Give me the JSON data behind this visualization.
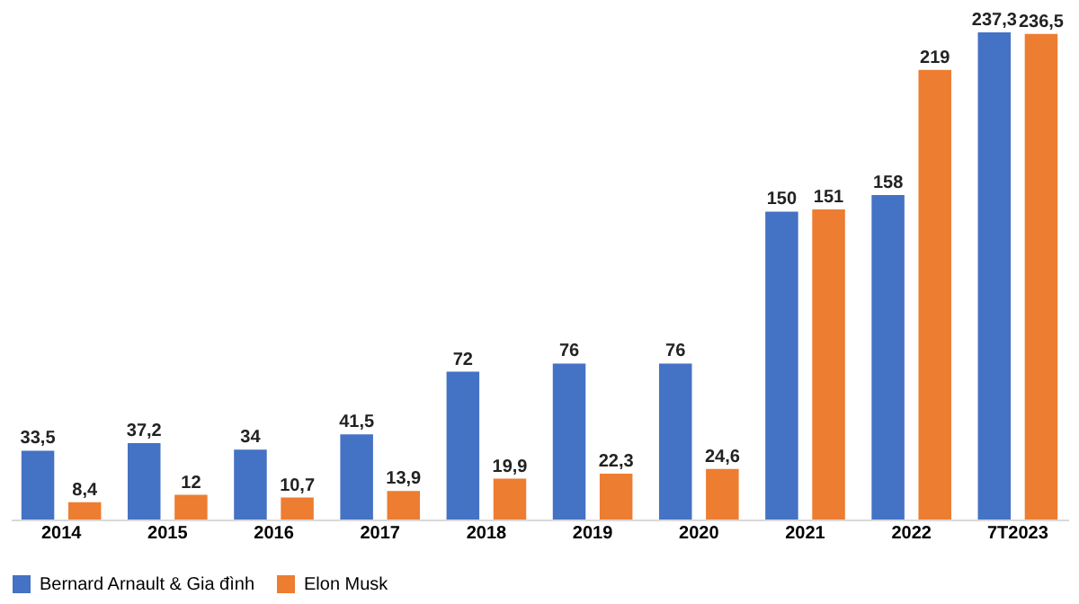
{
  "chart_data": {
    "type": "bar",
    "categories": [
      "2014",
      "2015",
      "2016",
      "2017",
      "2018",
      "2019",
      "2020",
      "2021",
      "2022",
      "7T2023"
    ],
    "series": [
      {
        "name": "Bernard Arnault & Gia đình",
        "color": "#4472c4",
        "values": [
          33.5,
          37.2,
          34,
          41.5,
          72,
          76,
          76,
          150,
          158,
          237.3
        ],
        "value_labels": [
          "33,5",
          "37,2",
          "34",
          "41,5",
          "72",
          "76",
          "76",
          "150",
          "158",
          "237,3"
        ]
      },
      {
        "name": "Elon Musk",
        "color": "#ed7d31",
        "values": [
          8.4,
          12,
          10.7,
          13.9,
          19.9,
          22.3,
          24.6,
          151,
          219,
          236.5
        ],
        "value_labels": [
          "8,4",
          "12",
          "10,7",
          "13,9",
          "19,9",
          "22,3",
          "24,6",
          "151",
          "219",
          "236,5"
        ]
      }
    ],
    "legend": "bottom",
    "grid": false
  }
}
